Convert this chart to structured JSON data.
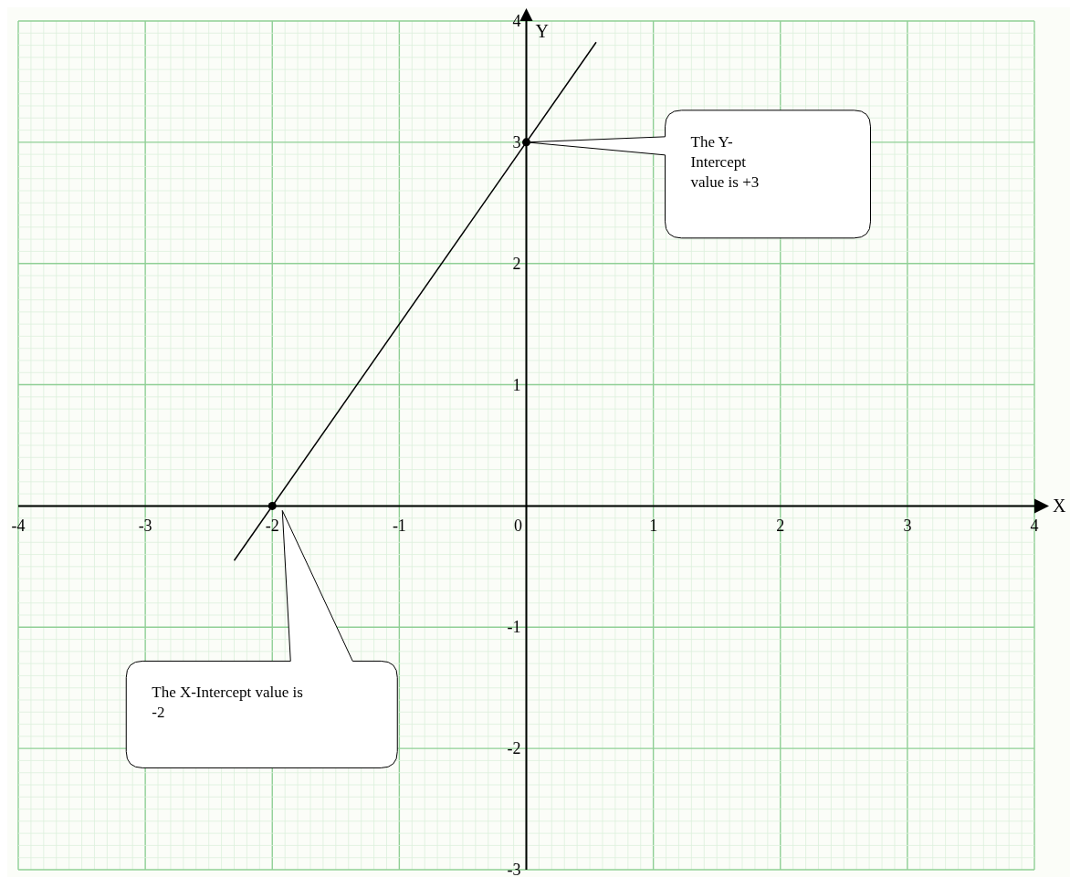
{
  "chart_data": {
    "type": "line",
    "xlabel": "X",
    "ylabel": "Y",
    "xlim": [
      -4,
      4
    ],
    "ylim": [
      -3,
      4
    ],
    "xticks": [
      -4,
      -3,
      -2,
      -1,
      0,
      1,
      2,
      3,
      4
    ],
    "yticks": [
      -3,
      -2,
      -1,
      1,
      2,
      3,
      4
    ],
    "grid": true,
    "series": [
      {
        "type": "line",
        "color": "#000000",
        "x": [
          -2.3,
          0.55
        ],
        "values": [
          -0.45,
          3.825
        ],
        "marker": "none"
      },
      {
        "type": "scatter",
        "color": "#000000",
        "x": [
          -2,
          0
        ],
        "values": [
          0,
          3
        ],
        "marker": "circle"
      }
    ],
    "annotations": [
      "The Y-Intercept value is +3",
      "The X-Intercept value is -2"
    ]
  }
}
